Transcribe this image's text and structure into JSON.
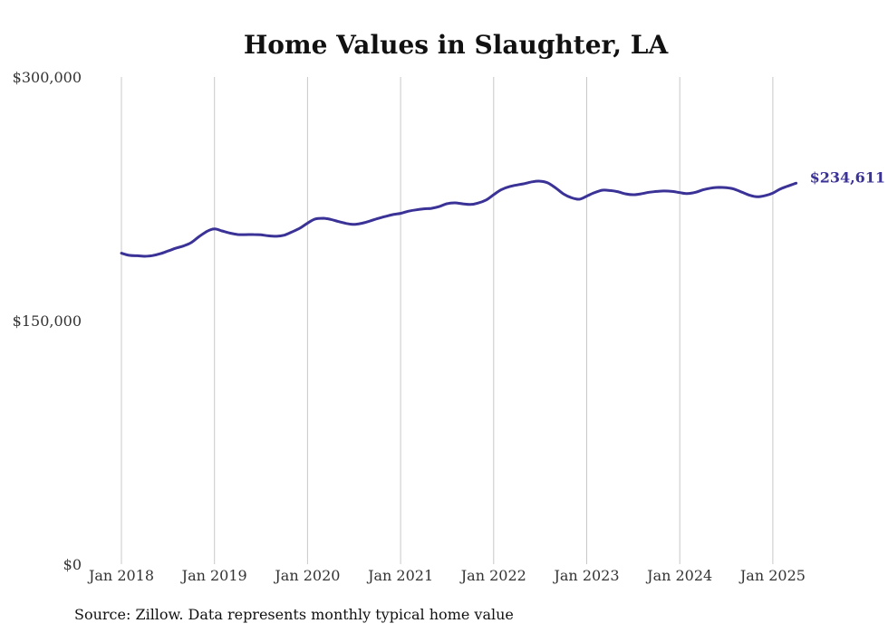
{
  "chart_data": {
    "type": "line",
    "title": "Home Values in Slaughter, LA",
    "source": "Source: Zillow. Data represents monthly typical home value",
    "xlabel": "",
    "ylabel": "",
    "ylim": [
      0,
      300000
    ],
    "y_ticks": [
      {
        "value": 0,
        "label": "$0"
      },
      {
        "value": 150000,
        "label": "$150,000"
      },
      {
        "value": 300000,
        "label": "$300,000"
      }
    ],
    "x_ticks": [
      {
        "value": 2018,
        "label": "Jan 2018"
      },
      {
        "value": 2019,
        "label": "Jan 2019"
      },
      {
        "value": 2020,
        "label": "Jan 2020"
      },
      {
        "value": 2021,
        "label": "Jan 2021"
      },
      {
        "value": 2022,
        "label": "Jan 2022"
      },
      {
        "value": 2023,
        "label": "Jan 2023"
      },
      {
        "value": 2024,
        "label": "Jan 2024"
      },
      {
        "value": 2025,
        "label": "Jan 2025"
      }
    ],
    "x_range": [
      2018,
      2025.25
    ],
    "grid": "vertical",
    "line_color": "#3a3296",
    "end_label": "$234,611",
    "series": [
      {
        "points": [
          [
            2018.0,
            191500
          ],
          [
            2018.08,
            190200
          ],
          [
            2018.17,
            189900
          ],
          [
            2018.25,
            189600
          ],
          [
            2018.33,
            190000
          ],
          [
            2018.42,
            191200
          ],
          [
            2018.5,
            192800
          ],
          [
            2018.58,
            194500
          ],
          [
            2018.67,
            196000
          ],
          [
            2018.75,
            198000
          ],
          [
            2018.83,
            201500
          ],
          [
            2018.92,
            205000
          ],
          [
            2019.0,
            206500
          ],
          [
            2019.08,
            205200
          ],
          [
            2019.17,
            203800
          ],
          [
            2019.25,
            203000
          ],
          [
            2019.33,
            202900
          ],
          [
            2019.42,
            203000
          ],
          [
            2019.5,
            202800
          ],
          [
            2019.58,
            202200
          ],
          [
            2019.67,
            201900
          ],
          [
            2019.75,
            202600
          ],
          [
            2019.83,
            204500
          ],
          [
            2019.92,
            207000
          ],
          [
            2020.0,
            210000
          ],
          [
            2020.08,
            212500
          ],
          [
            2020.17,
            213000
          ],
          [
            2020.25,
            212300
          ],
          [
            2020.33,
            211000
          ],
          [
            2020.42,
            209800
          ],
          [
            2020.5,
            209200
          ],
          [
            2020.58,
            209900
          ],
          [
            2020.67,
            211300
          ],
          [
            2020.75,
            212800
          ],
          [
            2020.83,
            214000
          ],
          [
            2020.92,
            215300
          ],
          [
            2021.0,
            216000
          ],
          [
            2021.08,
            217300
          ],
          [
            2021.17,
            218200
          ],
          [
            2021.25,
            218800
          ],
          [
            2021.33,
            219100
          ],
          [
            2021.42,
            220300
          ],
          [
            2021.5,
            222000
          ],
          [
            2021.58,
            222500
          ],
          [
            2021.67,
            221900
          ],
          [
            2021.75,
            221500
          ],
          [
            2021.83,
            222300
          ],
          [
            2021.92,
            224300
          ],
          [
            2022.0,
            227500
          ],
          [
            2022.08,
            230500
          ],
          [
            2022.17,
            232500
          ],
          [
            2022.25,
            233500
          ],
          [
            2022.33,
            234300
          ],
          [
            2022.42,
            235500
          ],
          [
            2022.5,
            235800
          ],
          [
            2022.58,
            234800
          ],
          [
            2022.67,
            231500
          ],
          [
            2022.75,
            228000
          ],
          [
            2022.83,
            225800
          ],
          [
            2022.92,
            224700
          ],
          [
            2023.0,
            226600
          ],
          [
            2023.08,
            228700
          ],
          [
            2023.17,
            230300
          ],
          [
            2023.25,
            230100
          ],
          [
            2023.33,
            229400
          ],
          [
            2023.42,
            228000
          ],
          [
            2023.5,
            227500
          ],
          [
            2023.58,
            228000
          ],
          [
            2023.67,
            229000
          ],
          [
            2023.75,
            229500
          ],
          [
            2023.83,
            229800
          ],
          [
            2023.92,
            229500
          ],
          [
            2024.0,
            228800
          ],
          [
            2024.08,
            228200
          ],
          [
            2024.17,
            229000
          ],
          [
            2024.25,
            230500
          ],
          [
            2024.33,
            231500
          ],
          [
            2024.42,
            232000
          ],
          [
            2024.5,
            231800
          ],
          [
            2024.58,
            231000
          ],
          [
            2024.67,
            229000
          ],
          [
            2024.75,
            227200
          ],
          [
            2024.83,
            226200
          ],
          [
            2024.92,
            227000
          ],
          [
            2025.0,
            228500
          ],
          [
            2025.08,
            231000
          ],
          [
            2025.17,
            233000
          ],
          [
            2025.25,
            234611
          ]
        ]
      }
    ]
  }
}
